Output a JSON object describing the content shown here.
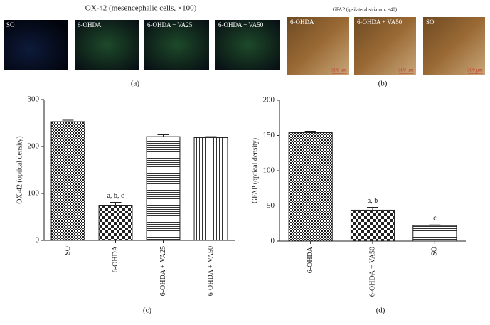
{
  "figure": {
    "left_title": "OX-42 (mesencephalic cells, ×100)",
    "left_images": [
      {
        "label": "SO"
      },
      {
        "label": "6-OHDA"
      },
      {
        "label": "6-OHDA + VA25"
      },
      {
        "label": "6-OHDA + VA50"
      }
    ],
    "left_panel": "(a)",
    "right_title": "GFAP (ipsilateral striatum, ×40)",
    "right_images": [
      {
        "label": "6-OHDA",
        "scale_bar": "500 μm"
      },
      {
        "label": "6-OHDA + VA50",
        "scale_bar": "500 μm"
      },
      {
        "label": "SO",
        "scale_bar": "500 μm"
      }
    ],
    "right_panel": "(b)"
  },
  "chart_data": [
    {
      "type": "bar",
      "panel": "(c)",
      "ylabel": "OX-42 (optical density)",
      "categories": [
        "SO",
        "6-OHDA",
        "6-OHDA + VA25",
        "6-OHDA + VA50"
      ],
      "values": [
        253,
        75,
        221,
        219
      ],
      "errors": [
        3,
        6,
        4,
        2
      ],
      "bar_labels": [
        null,
        "a, b, c",
        null,
        null
      ],
      "patterns": [
        "checker-fine",
        "checker",
        "hlines",
        "vlines"
      ],
      "ylim": [
        0,
        300
      ],
      "yticks": [
        0,
        100,
        200,
        300
      ],
      "grid": false
    },
    {
      "type": "bar",
      "panel": "(d)",
      "ylabel": "GFAP (optical density)",
      "categories": [
        "6-OHDA",
        "6-OHDA + VA50",
        "SO"
      ],
      "values": [
        154,
        44,
        22
      ],
      "errors": [
        2,
        4,
        1
      ],
      "bar_labels": [
        null,
        "a, b",
        "c"
      ],
      "patterns": [
        "checker-fine",
        "checker",
        "hlines"
      ],
      "ylim": [
        0,
        200
      ],
      "yticks": [
        0,
        50,
        100,
        150,
        200
      ],
      "grid": false
    }
  ]
}
